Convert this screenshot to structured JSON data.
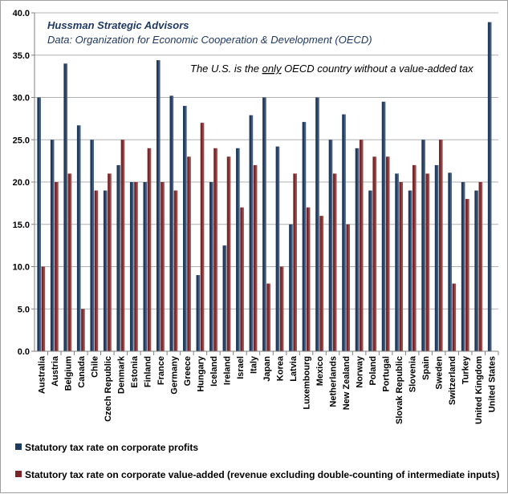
{
  "chart_data": {
    "type": "bar",
    "title": "Hussman Strategic Advisors",
    "subtitle": "Data: Organization for Economic Cooperation & Development (OECD)",
    "annotation": {
      "before": "The U.S. is the ",
      "emphasis": "only",
      "after": " OECD country without a value-added tax"
    },
    "ylim": [
      0,
      40
    ],
    "yticks": [
      "0.0",
      "5.0",
      "10.0",
      "15.0",
      "20.0",
      "25.0",
      "30.0",
      "35.0",
      "40.0"
    ],
    "grid": true,
    "legend_position": "bottom",
    "categories": [
      "Australia",
      "Austria",
      "Belgium",
      "Canada",
      "Chile",
      "Czech Republic",
      "Denmark",
      "Estonia",
      "Finland",
      "France",
      "Germany",
      "Greece",
      "Hungary",
      "Iceland",
      "Ireland",
      "Israel",
      "Italy",
      "Japan",
      "Korea",
      "Latvia",
      "Luxembourg",
      "Mexico",
      "Netherlands",
      "New Zealand",
      "Norway",
      "Poland",
      "Portugal",
      "Slovak Republic",
      "Slovenia",
      "Spain",
      "Sweden",
      "Switzerland",
      "Turkey",
      "United Kingdom",
      "United States"
    ],
    "series": [
      {
        "name": "Statutory tax rate on corporate profits",
        "color": "#1f3a5f",
        "values": [
          30.0,
          25.0,
          34.0,
          26.7,
          25.0,
          19.0,
          22.0,
          20.0,
          20.0,
          34.4,
          30.2,
          29.0,
          9.0,
          20.0,
          12.5,
          24.0,
          27.9,
          30.0,
          24.2,
          15.0,
          27.1,
          30.0,
          25.0,
          28.0,
          24.0,
          19.0,
          29.5,
          21.0,
          19.0,
          25.0,
          22.0,
          21.1,
          20.0,
          19.0,
          38.9
        ]
      },
      {
        "name": "Statutory tax rate on corporate value-added (revenue excluding double-counting of intermediate inputs)",
        "color": "#7a2628",
        "values": [
          10.0,
          20.0,
          21.0,
          5.0,
          19.0,
          21.0,
          25.0,
          20.0,
          24.0,
          20.0,
          19.0,
          23.0,
          27.0,
          24.0,
          23.0,
          17.0,
          22.0,
          8.0,
          10.0,
          21.0,
          17.0,
          16.0,
          21.0,
          15.0,
          25.0,
          23.0,
          23.0,
          20.0,
          22.0,
          21.0,
          25.0,
          8.0,
          18.0,
          20.0,
          0.0
        ]
      }
    ]
  }
}
